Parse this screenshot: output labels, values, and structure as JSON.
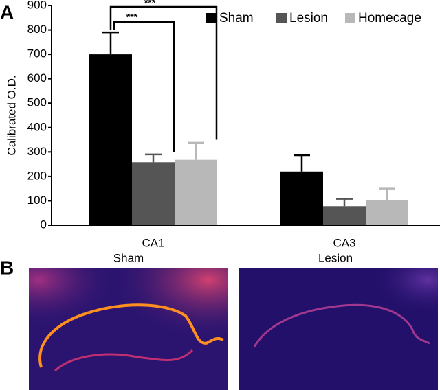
{
  "panel_labels": [
    "A",
    "B"
  ],
  "chart_data": {
    "type": "bar",
    "ylabel": "Calibrated O.D.",
    "categories": [
      "CA1",
      "CA3"
    ],
    "series": [
      {
        "name": "Sham",
        "color": "#000000",
        "values": [
          700,
          220
        ],
        "errors": [
          90,
          67
        ]
      },
      {
        "name": "Lesion",
        "color": "#555555",
        "values": [
          258,
          78
        ],
        "errors": [
          32,
          30
        ]
      },
      {
        "name": "Homecage",
        "color": "#b8b8b8",
        "values": [
          268,
          102
        ],
        "errors": [
          70,
          48
        ]
      }
    ],
    "ylim": [
      0,
      900
    ],
    "yticks": [
      0,
      100,
      200,
      300,
      400,
      500,
      600,
      700,
      800,
      900
    ],
    "annotations": [
      "***",
      "***"
    ],
    "legend": "top-right"
  },
  "images": [
    {
      "title": "Sham"
    },
    {
      "title": "Lesion"
    }
  ]
}
